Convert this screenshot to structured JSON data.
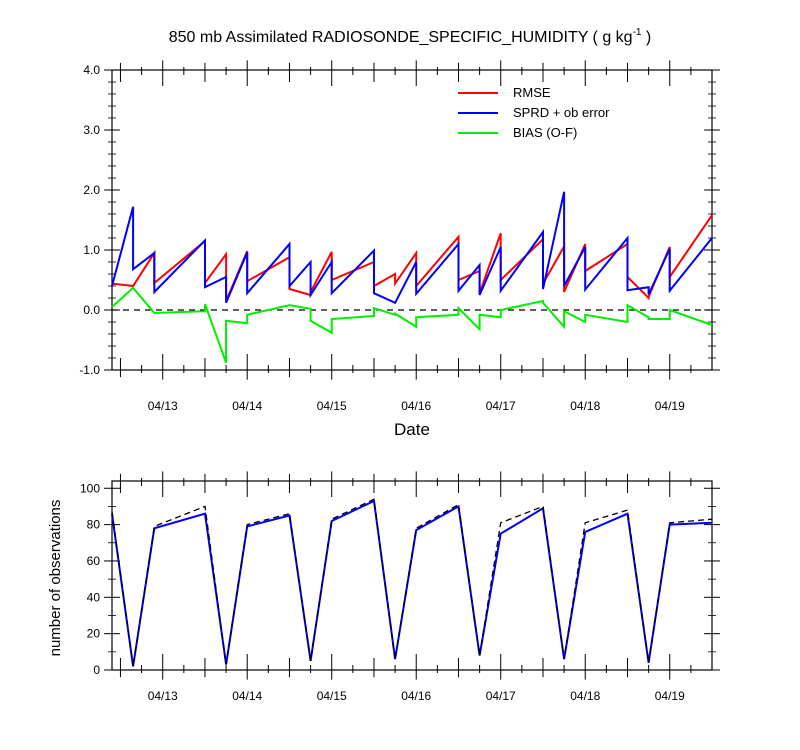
{
  "chart_data": [
    {
      "type": "line",
      "title_main": "850 mb Assimilated RADIOSONDE_SPECIFIC_HUMIDITY ( g kg",
      "title_sup": "-1",
      "title_end": " )",
      "xlabel": "Date",
      "ylabel": "",
      "ylim": [
        -1.0,
        4.0
      ],
      "yticks": [
        -1.0,
        0.0,
        1.0,
        2.0,
        3.0,
        4.0
      ],
      "ytick_labels": [
        "-1.0",
        "0.0",
        "1.0",
        "2.0",
        "3.0",
        "4.0"
      ],
      "xlim": [
        12.4,
        19.5
      ],
      "xticks": [
        13,
        14,
        15,
        16,
        17,
        18,
        19
      ],
      "xtick_labels": [
        "04/13",
        "04/14",
        "04/15",
        "04/16",
        "04/17",
        "04/18",
        "04/19"
      ],
      "zero_line": true,
      "legend_position": "top-right",
      "series": [
        {
          "name": "RMSE",
          "color": "#ff0000",
          "points": [
            [
              12.4,
              0.44
            ],
            [
              12.65,
              0.4
            ],
            [
              12.65,
              0.4
            ],
            [
              12.9,
              0.95
            ],
            [
              12.9,
              0.45
            ],
            [
              13.5,
              1.15
            ],
            [
              13.5,
              0.45
            ],
            [
              13.75,
              0.93
            ],
            [
              13.75,
              0.15
            ],
            [
              14.0,
              0.98
            ],
            [
              14.0,
              0.48
            ],
            [
              14.5,
              0.88
            ],
            [
              14.5,
              0.35
            ],
            [
              14.75,
              0.25
            ],
            [
              14.75,
              0.3
            ],
            [
              15.0,
              0.97
            ],
            [
              15.0,
              0.5
            ],
            [
              15.5,
              0.8
            ],
            [
              15.5,
              0.4
            ],
            [
              15.75,
              0.6
            ],
            [
              15.75,
              0.44
            ],
            [
              16.0,
              0.95
            ],
            [
              16.0,
              0.4
            ],
            [
              16.5,
              1.22
            ],
            [
              16.5,
              0.5
            ],
            [
              16.75,
              0.65
            ],
            [
              16.75,
              0.28
            ],
            [
              17.0,
              1.28
            ],
            [
              17.0,
              0.5
            ],
            [
              17.5,
              1.18
            ],
            [
              17.5,
              0.44
            ],
            [
              17.75,
              1.06
            ],
            [
              17.75,
              0.3
            ],
            [
              18.0,
              1.1
            ],
            [
              18.0,
              0.65
            ],
            [
              18.5,
              1.1
            ],
            [
              18.5,
              0.55
            ],
            [
              18.75,
              0.2
            ],
            [
              18.75,
              0.22
            ],
            [
              19.0,
              1.05
            ],
            [
              19.0,
              0.55
            ],
            [
              19.5,
              1.58
            ]
          ]
        },
        {
          "name": "SPRD + ob error",
          "color": "#0000ff",
          "points": [
            [
              12.4,
              0.4
            ],
            [
              12.65,
              1.72
            ],
            [
              12.65,
              0.68
            ],
            [
              12.9,
              0.95
            ],
            [
              12.9,
              0.3
            ],
            [
              13.5,
              1.16
            ],
            [
              13.5,
              0.38
            ],
            [
              13.75,
              0.55
            ],
            [
              13.75,
              0.12
            ],
            [
              14.0,
              0.96
            ],
            [
              14.0,
              0.28
            ],
            [
              14.5,
              1.1
            ],
            [
              14.5,
              0.4
            ],
            [
              14.75,
              0.8
            ],
            [
              14.75,
              0.25
            ],
            [
              15.0,
              0.8
            ],
            [
              15.0,
              0.28
            ],
            [
              15.5,
              0.99
            ],
            [
              15.5,
              0.28
            ],
            [
              15.75,
              0.12
            ],
            [
              15.75,
              0.12
            ],
            [
              16.0,
              0.8
            ],
            [
              16.0,
              0.27
            ],
            [
              16.5,
              1.1
            ],
            [
              16.5,
              0.32
            ],
            [
              16.75,
              0.75
            ],
            [
              16.75,
              0.25
            ],
            [
              17.0,
              1.05
            ],
            [
              17.0,
              0.32
            ],
            [
              17.5,
              1.3
            ],
            [
              17.5,
              0.35
            ],
            [
              17.75,
              1.97
            ],
            [
              17.75,
              0.4
            ],
            [
              18.0,
              1.05
            ],
            [
              18.0,
              0.34
            ],
            [
              18.5,
              1.2
            ],
            [
              18.5,
              0.33
            ],
            [
              18.75,
              0.38
            ],
            [
              18.75,
              0.26
            ],
            [
              19.0,
              1.02
            ],
            [
              19.0,
              0.32
            ],
            [
              19.5,
              1.2
            ]
          ]
        },
        {
          "name": "BIAS (O-F)",
          "color": "#00ee00",
          "points": [
            [
              12.4,
              0.05
            ],
            [
              12.65,
              0.37
            ],
            [
              12.65,
              0.37
            ],
            [
              12.9,
              -0.05
            ],
            [
              12.9,
              -0.05
            ],
            [
              13.5,
              -0.02
            ],
            [
              13.5,
              0.1
            ],
            [
              13.75,
              -0.88
            ],
            [
              13.75,
              -0.18
            ],
            [
              14.0,
              -0.22
            ],
            [
              14.0,
              -0.08
            ],
            [
              14.5,
              0.08
            ],
            [
              14.5,
              0.08
            ],
            [
              14.75,
              0.02
            ],
            [
              14.75,
              -0.18
            ],
            [
              15.0,
              -0.38
            ],
            [
              15.0,
              -0.15
            ],
            [
              15.5,
              -0.1
            ],
            [
              15.5,
              0.03
            ],
            [
              15.75,
              -0.08
            ],
            [
              15.75,
              -0.06
            ],
            [
              16.0,
              -0.28
            ],
            [
              16.0,
              -0.12
            ],
            [
              16.5,
              -0.08
            ],
            [
              16.5,
              0.03
            ],
            [
              16.75,
              -0.32
            ],
            [
              16.75,
              -0.08
            ],
            [
              17.0,
              -0.12
            ],
            [
              17.0,
              0.0
            ],
            [
              17.5,
              0.15
            ],
            [
              17.5,
              0.12
            ],
            [
              17.75,
              -0.28
            ],
            [
              17.75,
              -0.02
            ],
            [
              18.0,
              -0.2
            ],
            [
              18.0,
              -0.08
            ],
            [
              18.5,
              -0.2
            ],
            [
              18.5,
              0.08
            ],
            [
              18.75,
              -0.12
            ],
            [
              18.75,
              -0.15
            ],
            [
              19.0,
              -0.15
            ],
            [
              19.0,
              0.0
            ],
            [
              19.5,
              -0.25
            ]
          ]
        }
      ]
    },
    {
      "type": "line",
      "title": "",
      "xlabel": "",
      "ylabel": "number of observations",
      "ylim": [
        0,
        104
      ],
      "yticks": [
        0,
        20,
        40,
        60,
        80,
        100
      ],
      "ytick_labels": [
        "0",
        "20",
        "40",
        "60",
        "80",
        "100"
      ],
      "xlim": [
        12.4,
        19.5
      ],
      "xticks": [
        13,
        14,
        15,
        16,
        17,
        18,
        19
      ],
      "xtick_labels": [
        "04/13",
        "04/14",
        "04/15",
        "04/16",
        "04/17",
        "04/18",
        "04/19"
      ],
      "series": [
        {
          "role": "assimilated",
          "color": "#0000ff",
          "dashed": false,
          "points": [
            [
              12.4,
              86
            ],
            [
              12.65,
              2
            ],
            [
              12.9,
              78
            ],
            [
              13.5,
              86
            ],
            [
              13.75,
              3
            ],
            [
              14.0,
              79
            ],
            [
              14.5,
              85
            ],
            [
              14.75,
              5
            ],
            [
              15.0,
              82
            ],
            [
              15.5,
              93
            ],
            [
              15.75,
              6
            ],
            [
              16.0,
              77
            ],
            [
              16.5,
              90
            ],
            [
              16.75,
              8
            ],
            [
              17.0,
              75
            ],
            [
              17.5,
              89
            ],
            [
              17.75,
              6
            ],
            [
              18.0,
              76
            ],
            [
              18.5,
              86
            ],
            [
              18.75,
              4
            ],
            [
              19.0,
              80
            ],
            [
              19.5,
              81
            ]
          ]
        },
        {
          "role": "possible",
          "color": "#000000",
          "dashed": true,
          "points": [
            [
              12.4,
              87
            ],
            [
              12.65,
              2
            ],
            [
              12.9,
              79
            ],
            [
              13.5,
              90
            ],
            [
              13.75,
              3
            ],
            [
              14.0,
              80
            ],
            [
              14.5,
              86
            ],
            [
              14.75,
              5
            ],
            [
              15.0,
              83
            ],
            [
              15.5,
              94
            ],
            [
              15.75,
              6
            ],
            [
              16.0,
              78
            ],
            [
              16.5,
              91
            ],
            [
              16.75,
              8
            ],
            [
              17.0,
              81
            ],
            [
              17.5,
              90
            ],
            [
              17.75,
              6
            ],
            [
              18.0,
              81
            ],
            [
              18.5,
              88
            ],
            [
              18.75,
              4
            ],
            [
              19.0,
              81
            ],
            [
              19.5,
              83
            ]
          ]
        }
      ]
    }
  ]
}
